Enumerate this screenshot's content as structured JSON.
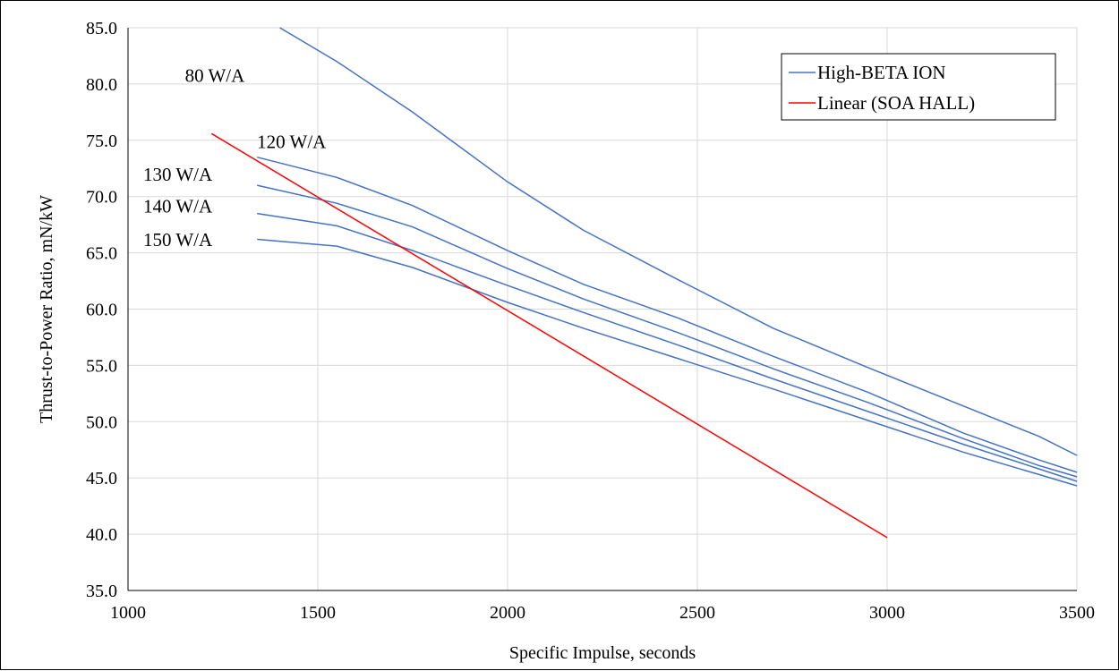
{
  "chart_data": {
    "type": "line",
    "title": "",
    "xlabel": "Specific  Impulse,  seconds",
    "ylabel": "Thrust-to-Power  Ratio,  mN/kW",
    "xlim": [
      1000,
      3500
    ],
    "ylim": [
      35,
      85
    ],
    "xticks": [
      1000,
      1500,
      2000,
      2500,
      3000,
      3500
    ],
    "xtick_labels": [
      "1000",
      "1500",
      "2000",
      "2500",
      "3000",
      "3500"
    ],
    "yticks": [
      35,
      40,
      45,
      50,
      55,
      60,
      65,
      70,
      75,
      80,
      85
    ],
    "ytick_labels": [
      "35.0",
      "40.0",
      "45.0",
      "50.0",
      "55.0",
      "60.0",
      "65.0",
      "70.0",
      "75.0",
      "80.0",
      "85.0"
    ],
    "grid": true,
    "legend_position": "top-right",
    "legend": [
      {
        "label": "High-BETA ION",
        "color": "#4472C4"
      },
      {
        "label": "Linear (SOA HALL)",
        "color": "#FF0000"
      }
    ],
    "series": [
      {
        "group": "High-BETA ION",
        "color": "#4472C4",
        "x": [
          1400,
          1550,
          1750,
          2000,
          2200,
          2450,
          2700,
          2950,
          3200,
          3400,
          3500
        ],
        "y": [
          85.0,
          82.0,
          77.5,
          71.3,
          67.0,
          62.6,
          58.3,
          54.8,
          51.4,
          48.7,
          47.0
        ]
      },
      {
        "group": "High-BETA ION",
        "color": "#4472C4",
        "x": [
          1340,
          1550,
          1750,
          2000,
          2200,
          2450,
          2700,
          2950,
          3200,
          3400,
          3500
        ],
        "y": [
          73.5,
          71.7,
          69.2,
          65.2,
          62.2,
          59.2,
          55.8,
          52.6,
          49.0,
          46.6,
          45.5
        ]
      },
      {
        "group": "High-BETA ION",
        "color": "#4472C4",
        "x": [
          1340,
          1550,
          1750,
          2000,
          2200,
          2450,
          2700,
          2950,
          3200,
          3400,
          3500
        ],
        "y": [
          71.0,
          69.4,
          67.3,
          63.6,
          60.9,
          57.9,
          54.7,
          51.7,
          48.5,
          46.1,
          45.1
        ]
      },
      {
        "group": "High-BETA ION",
        "color": "#4472C4",
        "x": [
          1340,
          1550,
          1750,
          2000,
          2200,
          2450,
          2700,
          2950,
          3200,
          3400,
          3500
        ],
        "y": [
          68.5,
          67.4,
          65.2,
          62.1,
          59.7,
          56.8,
          53.8,
          50.9,
          48.0,
          45.8,
          44.7
        ]
      },
      {
        "group": "High-BETA ION",
        "color": "#4472C4",
        "x": [
          1340,
          1550,
          1750,
          2000,
          2200,
          2450,
          2700,
          2950,
          3200,
          3400,
          3500
        ],
        "y": [
          66.2,
          65.6,
          63.7,
          60.6,
          58.3,
          55.6,
          52.9,
          50.1,
          47.3,
          45.3,
          44.3
        ]
      },
      {
        "group": "Linear (SOA HALL)",
        "color": "#FF0000",
        "x": [
          1220,
          3000
        ],
        "y": [
          75.6,
          39.7
        ]
      }
    ],
    "annotations": [
      {
        "text": "80 W/A",
        "x": 1150,
        "y": 80.2
      },
      {
        "text": "120 W/A",
        "x": 1340,
        "y": 74.3
      },
      {
        "text": "130 W/A",
        "x": 1040,
        "y": 71.4
      },
      {
        "text": "140 W/A",
        "x": 1040,
        "y": 68.6
      },
      {
        "text": "150 W/A",
        "x": 1040,
        "y": 65.6
      }
    ]
  }
}
